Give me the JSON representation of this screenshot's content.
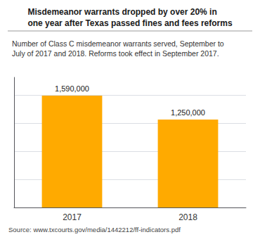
{
  "chart_data": {
    "type": "bar",
    "title": "Misdemeanor warrants dropped by over 20% in\none year after Texas passed fines and fees reforms",
    "subtitle": "Number of Class C misdemeanor warrants served, September to\nJuly of 2017 and 2018. Reforms took effect in September 2017.",
    "annotations": [
      "Source: www.txcourts.gov/media/1442212/ff-indicators.pdf"
    ],
    "categories": [
      "2017",
      "2018"
    ],
    "values": [
      1590000,
      1250000
    ],
    "value_labels": [
      "1,590,000",
      "1,250,000"
    ],
    "data_labels": true,
    "color": "#FFAA00",
    "ylim": [
      0,
      1850000
    ],
    "yticks": [
      400000,
      800000,
      1200000,
      1600000
    ],
    "grid": true,
    "tick_labels": "x"
  }
}
